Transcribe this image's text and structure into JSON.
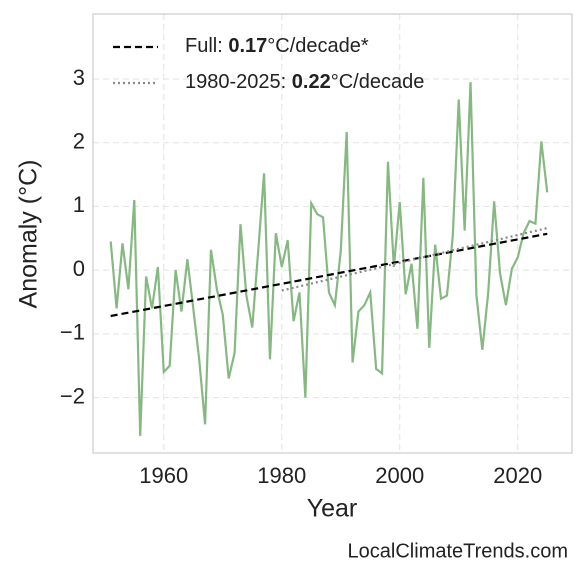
{
  "chart_data": {
    "type": "line",
    "x_label": "Year",
    "y_label": "Anomaly (°C)",
    "watermark": "LocalClimateTrends.com",
    "xlim": [
      1948,
      2029.2
    ],
    "ylim": [
      -2.87,
      4.02
    ],
    "xticks": [
      1960,
      1980,
      2000,
      2020
    ],
    "yticks": [
      {
        "value": -2,
        "label": "−2"
      },
      {
        "value": -1,
        "label": "−1"
      },
      0,
      1,
      2,
      3
    ],
    "grid": true,
    "legend": "upper left",
    "series": [
      {
        "color": "#86b982",
        "style": "solid",
        "x": [
          1951,
          1952,
          1953,
          1954,
          1955,
          1956,
          1957,
          1958,
          1959,
          1960,
          1961,
          1962,
          1963,
          1964,
          1965,
          1966,
          1967,
          1968,
          1969,
          1970,
          1971,
          1972,
          1973,
          1974,
          1975,
          1976,
          1977,
          1978,
          1979,
          1980,
          1981,
          1982,
          1983,
          1984,
          1985,
          1986,
          1987,
          1988,
          1989,
          1990,
          1991,
          1992,
          1993,
          1994,
          1995,
          1996,
          1997,
          1998,
          1999,
          2000,
          2001,
          2002,
          2003,
          2004,
          2005,
          2006,
          2007,
          2008,
          2009,
          2010,
          2011,
          2012,
          2013,
          2014,
          2015,
          2016,
          2017,
          2018,
          2019,
          2020,
          2021,
          2022,
          2023,
          2024,
          2025
        ],
        "values": [
          0.45,
          -0.6,
          0.42,
          -0.3,
          1.1,
          -2.6,
          -0.1,
          -0.6,
          0.05,
          -1.6,
          -1.5,
          0.0,
          -0.65,
          0.17,
          -0.6,
          -1.4,
          -2.42,
          0.32,
          -0.3,
          -0.7,
          -1.7,
          -1.3,
          0.72,
          -0.4,
          -0.9,
          0.3,
          1.52,
          -1.4,
          0.58,
          0.05,
          0.47,
          -0.8,
          -0.35,
          -2.0,
          1.05,
          0.88,
          0.83,
          -0.35,
          -0.55,
          0.3,
          2.17,
          -1.45,
          -0.65,
          -0.55,
          -0.35,
          -1.55,
          -1.62,
          1.7,
          0.05,
          1.07,
          -0.38,
          0.1,
          -0.92,
          1.45,
          -1.22,
          0.4,
          -0.45,
          -0.4,
          0.55,
          2.68,
          0.62,
          2.95,
          -0.4,
          -1.25,
          -0.35,
          1.08,
          -0.05,
          -0.55,
          0.02,
          0.2,
          0.58,
          0.77,
          0.73,
          2.02,
          1.22
        ]
      },
      {
        "name_parts": [
          "Full: ",
          "0.17",
          "°C/decade*"
        ],
        "color": "#000000",
        "style": "dashed",
        "x": [
          1951,
          2025
        ],
        "values": [
          -0.72,
          0.57
        ]
      },
      {
        "name_parts": [
          "1980-2025: ",
          "0.22",
          "°C/decade"
        ],
        "color": "#888888",
        "style": "dotted",
        "x": [
          1980,
          2025
        ],
        "values": [
          -0.32,
          0.66
        ]
      }
    ]
  }
}
